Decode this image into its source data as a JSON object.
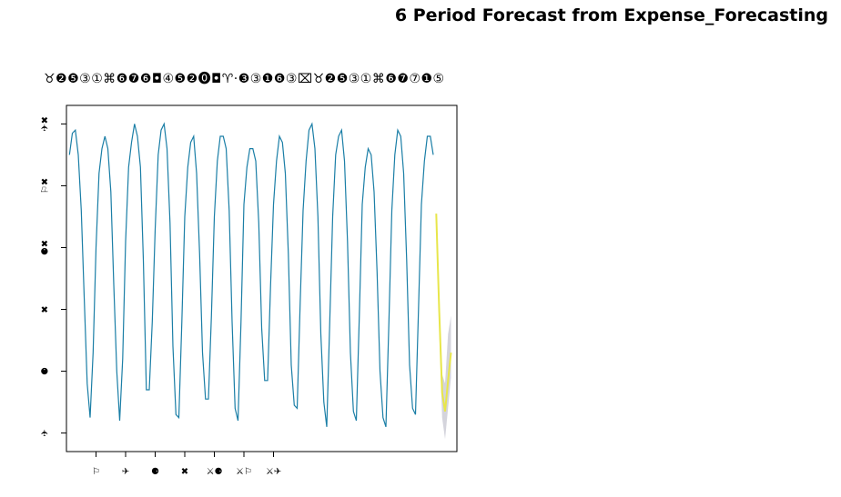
{
  "page": {
    "title": "6 Period Forecast from Expense_Forecasting",
    "subtitle": "♉❷❺③①⌘❻❼❻◘④❺❷⓿◘♈·❸③❶❻③⌧♉❷❺③①⌘❻❼⑦❶⑤"
  },
  "colors": {
    "history_line": "#1a7ea6",
    "forecast_line": "#e8e64a",
    "confidence_band": "#b0b0c0",
    "axis": "#000000"
  },
  "chart_data": {
    "type": "line",
    "title": "♉❷❺③①⌘❻❼❻◘④❺❷⓿◘♈·❸③❶❻③⌧♉❷❺③①⌘❻❼⑦❶⑤",
    "xlabel": "",
    "ylabel": "",
    "xlim": [
      0,
      132
    ],
    "ylim": [
      -0.3,
      5.3
    ],
    "grid": false,
    "x_ticks": [
      10,
      20,
      30,
      40,
      50,
      60,
      70
    ],
    "x_tick_labels": [
      "⚐",
      "✈",
      "⚈",
      "✖",
      "⚔⚈",
      "⚔⚐",
      "⚔✈"
    ],
    "y_ticks": [
      0,
      1,
      2,
      3,
      4,
      5
    ],
    "y_tick_labels": [
      "✈",
      "⚈",
      "✖",
      "⚈✖",
      "⚐✖",
      "✈✖"
    ],
    "series": [
      {
        "role": "history",
        "x_start": 1,
        "values": [
          4.5,
          4.85,
          4.9,
          4.5,
          3.6,
          2.2,
          0.8,
          0.25,
          1.3,
          3.0,
          4.2,
          4.6,
          4.8,
          4.6,
          3.9,
          2.4,
          1.0,
          0.2,
          1.2,
          3.1,
          4.3,
          4.7,
          5.0,
          4.8,
          4.3,
          2.8,
          0.7,
          0.7,
          1.8,
          3.3,
          4.5,
          4.9,
          5.0,
          4.6,
          3.4,
          1.4,
          0.3,
          0.25,
          1.8,
          3.5,
          4.3,
          4.7,
          4.8,
          4.2,
          2.9,
          1.3,
          0.55,
          0.55,
          1.9,
          3.5,
          4.4,
          4.8,
          4.8,
          4.6,
          3.6,
          1.8,
          0.4,
          0.2,
          1.8,
          3.7,
          4.3,
          4.6,
          4.6,
          4.4,
          3.4,
          1.7,
          0.85,
          0.85,
          2.4,
          3.7,
          4.4,
          4.8,
          4.7,
          4.2,
          2.9,
          1.1,
          0.45,
          0.4,
          2.1,
          3.6,
          4.4,
          4.9,
          5.0,
          4.6,
          3.5,
          1.6,
          0.5,
          0.1,
          1.8,
          3.5,
          4.5,
          4.8,
          4.9,
          4.4,
          3.1,
          1.3,
          0.35,
          0.2,
          1.9,
          3.7,
          4.3,
          4.6,
          4.5,
          3.9,
          2.6,
          1.0,
          0.25,
          0.1,
          1.8,
          3.6,
          4.5,
          4.9,
          4.8,
          4.2,
          2.8,
          1.1,
          0.4,
          0.3,
          2.0,
          3.7,
          4.4,
          4.8,
          4.8,
          4.5
        ]
      },
      {
        "role": "forecast",
        "x_start": 125,
        "values": [
          3.55,
          2.0,
          0.65,
          0.35,
          0.85,
          1.3
        ]
      },
      {
        "role": "confidence_band",
        "x_start": 125,
        "lower": [
          3.55,
          1.7,
          0.25,
          -0.1,
          0.4,
          0.9
        ],
        "upper": [
          3.55,
          2.2,
          0.95,
          0.8,
          1.6,
          1.9
        ]
      }
    ]
  }
}
